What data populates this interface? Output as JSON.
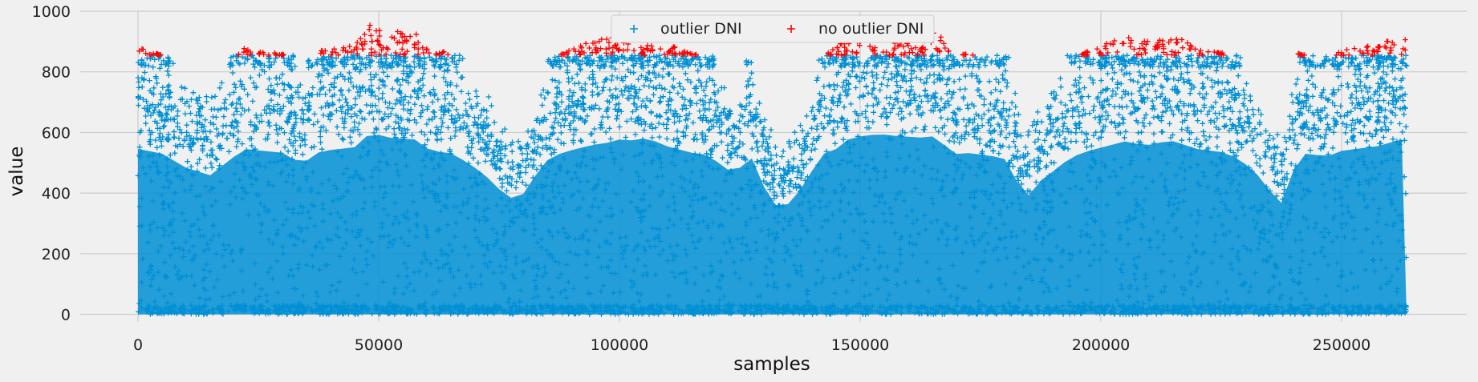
{
  "chart_data": {
    "type": "scatter",
    "xlabel": "samples",
    "ylabel": "value",
    "xlim": [
      -12000,
      276000
    ],
    "ylim": [
      -25,
      1000
    ],
    "x_ticks": [
      0,
      50000,
      100000,
      150000,
      200000,
      250000
    ],
    "x_tick_labels": [
      "0",
      "50000",
      "100000",
      "150000",
      "200000",
      "250000"
    ],
    "y_ticks": [
      0,
      200,
      400,
      600,
      800,
      1000
    ],
    "y_tick_labels": [
      "0",
      "200",
      "400",
      "600",
      "800",
      "1000"
    ],
    "grid": true,
    "legend": {
      "placement": "top-center",
      "ncol": 2
    },
    "outlier_threshold": 855,
    "marker": "plus",
    "series": [
      {
        "name": "outlier DNI",
        "color": "#008fd5",
        "role": "values at or below threshold",
        "value_range": [
          0,
          855
        ]
      },
      {
        "name": "no outlier DNI",
        "color": "#ff0000",
        "role": "values above threshold",
        "value_range": [
          855,
          965
        ]
      }
    ],
    "envelope": {
      "x": [
        0,
        2000,
        5000,
        10000,
        15000,
        19000,
        22000,
        26000,
        30000,
        34000,
        38000,
        42000,
        45000,
        48000,
        50000,
        52000,
        55000,
        58000,
        61000,
        64000,
        67000,
        70000,
        73000,
        76000,
        79000,
        82000,
        85000,
        88000,
        91000,
        94000,
        97000,
        100000,
        103000,
        106000,
        109000,
        112000,
        115000,
        118000,
        121000,
        124000,
        127000,
        130000,
        133000,
        136000,
        139000,
        142000,
        145000,
        148000,
        151000,
        154000,
        157000,
        160000,
        163000,
        166000,
        169000,
        172000,
        175000,
        178000,
        181000,
        184000,
        187000,
        190000,
        193000,
        196000,
        199000,
        202000,
        205000,
        208000,
        211000,
        214000,
        217000,
        220000,
        223000,
        226000,
        229000,
        232000,
        235000,
        238000,
        241000,
        244000,
        247000,
        250000,
        253000,
        256000,
        259000,
        262000,
        263500
      ],
      "max": [
        880,
        870,
        855,
        780,
        740,
        820,
        880,
        870,
        860,
        800,
        870,
        880,
        890,
        960,
        955,
        940,
        935,
        930,
        860,
        870,
        830,
        780,
        720,
        640,
        600,
        720,
        820,
        860,
        880,
        900,
        910,
        930,
        925,
        940,
        900,
        880,
        860,
        850,
        800,
        740,
        860,
        680,
        560,
        600,
        720,
        850,
        880,
        940,
        950,
        960,
        950,
        945,
        940,
        950,
        850,
        860,
        850,
        840,
        820,
        600,
        700,
        760,
        820,
        860,
        880,
        900,
        920,
        905,
        900,
        930,
        905,
        880,
        870,
        860,
        820,
        760,
        660,
        580,
        860,
        850,
        840,
        870,
        880,
        890,
        900,
        940,
        910
      ],
      "min": [
        0,
        0,
        0,
        0,
        0,
        0,
        0,
        0,
        0,
        0,
        0,
        0,
        0,
        0,
        0,
        0,
        0,
        0,
        0,
        0,
        0,
        0,
        0,
        0,
        0,
        0,
        0,
        0,
        0,
        0,
        0,
        0,
        0,
        0,
        0,
        0,
        0,
        0,
        0,
        0,
        0,
        0,
        0,
        0,
        0,
        0,
        0,
        0,
        0,
        0,
        0,
        0,
        0,
        0,
        0,
        0,
        0,
        0,
        0,
        0,
        0,
        0,
        0,
        0,
        0,
        0,
        0,
        0,
        0,
        0,
        0,
        0,
        0,
        0,
        0,
        0,
        0,
        0,
        0,
        0,
        0,
        0,
        0,
        0,
        0,
        0,
        0
      ]
    },
    "x_max_sample": 263500
  }
}
